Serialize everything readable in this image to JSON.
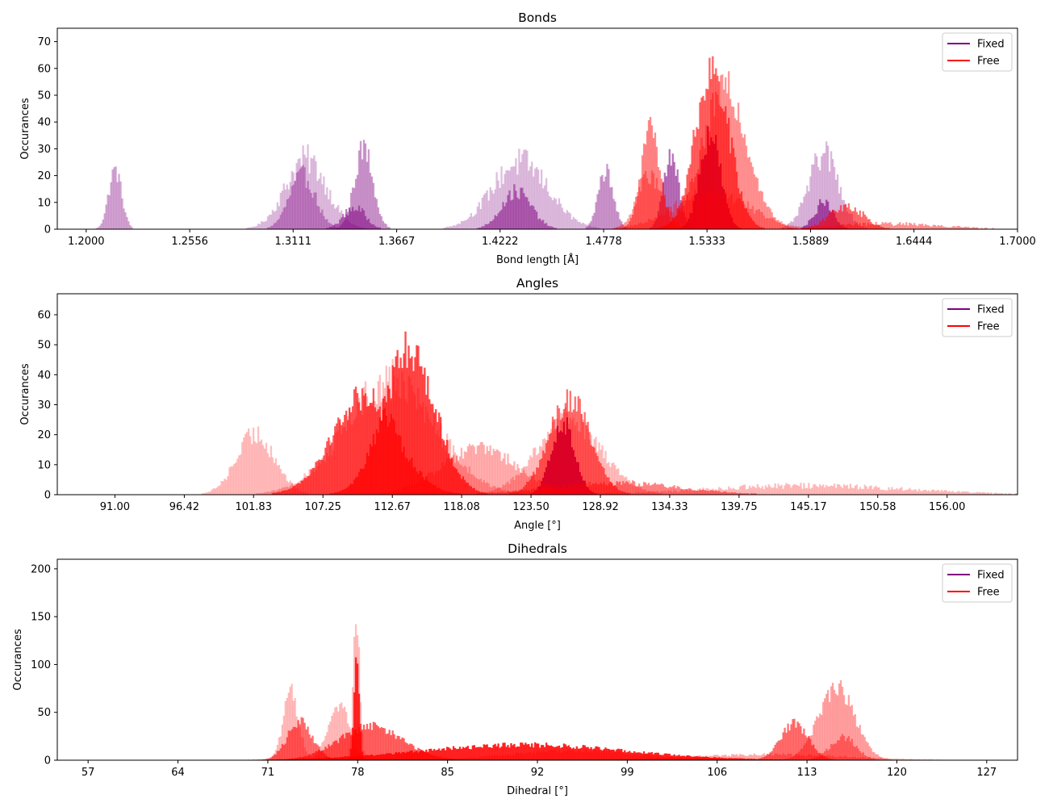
{
  "figure": {
    "legend_labels": [
      "Fixed",
      "Free"
    ]
  },
  "chart_data": [
    {
      "type": "bar",
      "title": "Bonds",
      "xlabel": "Bond length [Å]",
      "ylabel": "Occurances",
      "xlim": [
        1.1845,
        1.7
      ],
      "ylim": [
        0,
        75
      ],
      "xticks": [
        1.2,
        1.2556,
        1.3111,
        1.3667,
        1.4222,
        1.4778,
        1.5333,
        1.5889,
        1.6444,
        1.7
      ],
      "xtick_labels": [
        "1.2000",
        "1.2556",
        "1.3111",
        "1.3667",
        "1.4222",
        "1.4778",
        "1.5333",
        "1.5889",
        "1.6444",
        "1.7000"
      ],
      "yticks": [
        0,
        10,
        20,
        30,
        40,
        50,
        60,
        70
      ],
      "legend": {
        "position": "top-right",
        "entries": [
          {
            "label": "Fixed",
            "color": "#800080"
          },
          {
            "label": "Free",
            "color": "#ff0000"
          }
        ]
      },
      "series": [
        {
          "name": "Fixed",
          "color": "#800080",
          "peaks": [
            {
              "center": 1.2155,
              "sigma": 0.0035,
              "height": 22,
              "opacity": 0.35,
              "noise": 0.35
            },
            {
              "center": 1.318,
              "sigma": 0.011,
              "height": 26,
              "opacity": 0.25,
              "noise": 0.45
            },
            {
              "center": 1.316,
              "sigma": 0.007,
              "height": 20,
              "opacity": 0.35,
              "noise": 0.4
            },
            {
              "center": 1.349,
              "sigma": 0.005,
              "height": 30,
              "opacity": 0.4,
              "noise": 0.35
            },
            {
              "center": 1.344,
              "sigma": 0.006,
              "height": 8,
              "opacity": 0.5,
              "noise": 0.5
            },
            {
              "center": 1.433,
              "sigma": 0.015,
              "height": 25,
              "opacity": 0.25,
              "noise": 0.45
            },
            {
              "center": 1.431,
              "sigma": 0.008,
              "height": 14,
              "opacity": 0.5,
              "noise": 0.45
            },
            {
              "center": 1.479,
              "sigma": 0.004,
              "height": 22,
              "opacity": 0.4,
              "noise": 0.35
            },
            {
              "center": 1.514,
              "sigma": 0.004,
              "height": 28,
              "opacity": 0.55,
              "noise": 0.35
            },
            {
              "center": 1.535,
              "sigma": 0.0055,
              "height": 36,
              "opacity": 0.9,
              "noise": 0.35
            },
            {
              "center": 1.596,
              "sigma": 0.008,
              "height": 28,
              "opacity": 0.28,
              "noise": 0.4
            },
            {
              "center": 1.596,
              "sigma": 0.005,
              "height": 10,
              "opacity": 0.6,
              "noise": 0.45
            }
          ]
        },
        {
          "name": "Free",
          "color": "#ff0000",
          "peaks": [
            {
              "center": 1.503,
              "sigma": 0.005,
              "height": 38,
              "opacity": 0.45,
              "noise": 0.35
            },
            {
              "center": 1.503,
              "sigma": 0.007,
              "height": 20,
              "opacity": 0.35,
              "noise": 0.4
            },
            {
              "center": 1.536,
              "sigma": 0.009,
              "height": 60,
              "opacity": 0.6,
              "noise": 0.3
            },
            {
              "center": 1.543,
              "sigma": 0.012,
              "height": 52,
              "opacity": 0.4,
              "noise": 0.3
            },
            {
              "center": 1.536,
              "sigma": 0.02,
              "height": 14,
              "opacity": 0.3,
              "noise": 0.45
            },
            {
              "center": 1.608,
              "sigma": 0.009,
              "height": 9,
              "opacity": 0.55,
              "noise": 0.5
            },
            {
              "center": 1.63,
              "sigma": 0.03,
              "height": 2,
              "opacity": 0.4,
              "noise": 0.8
            }
          ]
        }
      ]
    },
    {
      "type": "bar",
      "title": "Angles",
      "xlabel": "Angle [°]",
      "ylabel": "Occurances",
      "xlim": [
        86.5,
        161.5
      ],
      "ylim": [
        0,
        67
      ],
      "xticks": [
        91.0,
        96.42,
        101.83,
        107.25,
        112.67,
        118.08,
        123.5,
        128.92,
        134.33,
        139.75,
        145.17,
        150.58,
        156.0
      ],
      "xtick_labels": [
        "91.00",
        "96.42",
        "101.83",
        "107.25",
        "112.67",
        "118.08",
        "123.50",
        "128.92",
        "134.33",
        "139.75",
        "145.17",
        "150.58",
        "156.00"
      ],
      "yticks": [
        0,
        10,
        20,
        30,
        40,
        50,
        60
      ],
      "legend": {
        "position": "top-right",
        "entries": [
          {
            "label": "Fixed",
            "color": "#800080"
          },
          {
            "label": "Free",
            "color": "#ff0000"
          }
        ]
      },
      "series": [
        {
          "name": "Fixed",
          "color": "#800080",
          "peaks": [
            {
              "center": 126.0,
              "sigma": 0.9,
              "height": 24,
              "opacity": 0.95,
              "noise": 0.3
            }
          ]
        },
        {
          "name": "Free",
          "color": "#ff0000",
          "peaks": [
            {
              "center": 102.0,
              "sigma": 1.5,
              "height": 20,
              "opacity": 0.25,
              "noise": 0.4
            },
            {
              "center": 110.5,
              "sigma": 2.5,
              "height": 33,
              "opacity": 0.65,
              "noise": 0.3
            },
            {
              "center": 114.0,
              "sigma": 2.0,
              "height": 48,
              "opacity": 0.7,
              "noise": 0.3
            },
            {
              "center": 112.5,
              "sigma": 3.5,
              "height": 38,
              "opacity": 0.25,
              "noise": 0.4
            },
            {
              "center": 119.5,
              "sigma": 3.0,
              "height": 15,
              "opacity": 0.3,
              "noise": 0.4
            },
            {
              "center": 126.5,
              "sigma": 1.6,
              "height": 32,
              "opacity": 0.55,
              "noise": 0.3
            },
            {
              "center": 126.5,
              "sigma": 2.5,
              "height": 25,
              "opacity": 0.25,
              "noise": 0.35
            },
            {
              "center": 130.0,
              "sigma": 5.0,
              "height": 4,
              "opacity": 0.45,
              "noise": 0.5
            },
            {
              "center": 145.0,
              "sigma": 8.0,
              "height": 3,
              "opacity": 0.25,
              "noise": 0.7
            }
          ]
        }
      ]
    },
    {
      "type": "bar",
      "title": "Dihedrals",
      "xlabel": "Dihedral [°]",
      "ylabel": "Occurances",
      "xlim": [
        54.6,
        129.4
      ],
      "ylim": [
        0,
        210
      ],
      "xticks": [
        57,
        64,
        71,
        78,
        85,
        92,
        99,
        106,
        113,
        120,
        127
      ],
      "xtick_labels": [
        "57",
        "64",
        "71",
        "78",
        "85",
        "92",
        "99",
        "106",
        "113",
        "120",
        "127"
      ],
      "yticks": [
        0,
        50,
        100,
        150,
        200
      ],
      "legend": {
        "position": "top-right",
        "entries": [
          {
            "label": "Fixed",
            "color": "#800080"
          },
          {
            "label": "Free",
            "color": "#ff0000"
          }
        ]
      },
      "series": [
        {
          "name": "Fixed",
          "color": "#800080",
          "peaks": []
        },
        {
          "name": "Free",
          "color": "#ff0000",
          "peaks": [
            {
              "center": 72.8,
              "sigma": 0.6,
              "height": 70,
              "opacity": 0.25,
              "noise": 0.3
            },
            {
              "center": 73.5,
              "sigma": 1.0,
              "height": 40,
              "opacity": 0.55,
              "noise": 0.35
            },
            {
              "center": 76.5,
              "sigma": 0.8,
              "height": 60,
              "opacity": 0.25,
              "noise": 0.3
            },
            {
              "center": 77.9,
              "sigma": 0.25,
              "height": 150,
              "opacity": 0.25,
              "noise": 0.2
            },
            {
              "center": 77.9,
              "sigma": 0.2,
              "height": 110,
              "opacity": 0.8,
              "noise": 0.2
            },
            {
              "center": 79.0,
              "sigma": 2.5,
              "height": 35,
              "opacity": 0.6,
              "noise": 0.3
            },
            {
              "center": 91.0,
              "sigma": 8.0,
              "height": 16,
              "opacity": 0.85,
              "noise": 0.35
            },
            {
              "center": 95.0,
              "sigma": 5.0,
              "height": 10,
              "opacity": 0.3,
              "noise": 0.45
            },
            {
              "center": 112.0,
              "sigma": 1.1,
              "height": 38,
              "opacity": 0.55,
              "noise": 0.3
            },
            {
              "center": 115.3,
              "sigma": 1.4,
              "height": 75,
              "opacity": 0.35,
              "noise": 0.3
            },
            {
              "center": 115.8,
              "sigma": 1.0,
              "height": 25,
              "opacity": 0.4,
              "noise": 0.4
            },
            {
              "center": 110.0,
              "sigma": 6.0,
              "height": 6,
              "opacity": 0.3,
              "noise": 0.6
            }
          ]
        }
      ]
    }
  ]
}
